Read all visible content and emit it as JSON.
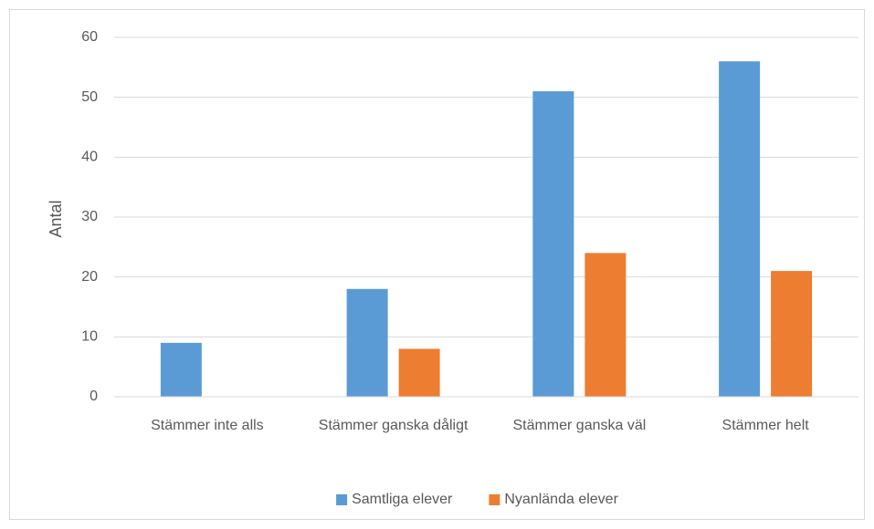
{
  "chart_data": {
    "type": "bar",
    "y_label": "Antal",
    "categories": [
      "Stämmer inte alls",
      "Stämmer ganska dåligt",
      "Stämmer ganska väl",
      "Stämmer helt"
    ],
    "series": [
      {
        "name": "Samtliga elever",
        "color": "#5b9bd5",
        "values": [
          9,
          18,
          51,
          56
        ]
      },
      {
        "name": "Nyanlända elever",
        "color": "#ed7d31",
        "values": [
          0,
          8,
          24,
          21
        ]
      }
    ],
    "ylim": [
      0,
      60
    ],
    "yticks": [
      0,
      10,
      20,
      30,
      40,
      50,
      60
    ],
    "grid": true,
    "legend": "bottom"
  }
}
